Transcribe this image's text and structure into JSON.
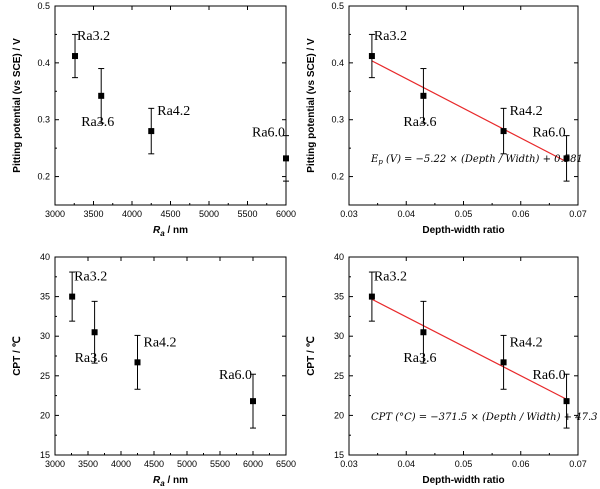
{
  "chart_data": [
    {
      "type": "scatter",
      "panel": "top-left",
      "xlabel": "Ra / nm",
      "xlabel_main": "R",
      "xlabel_sub": "a",
      "xlabel_rest": " / nm",
      "ylabel": "Pitting potential (vs SCE) / V",
      "xlim": [
        3000,
        6000
      ],
      "ylim": [
        0.15,
        0.5
      ],
      "xticks": [
        3000,
        3500,
        4000,
        4500,
        5000,
        5500,
        6000
      ],
      "yticks": [
        0.2,
        0.3,
        0.4,
        0.5
      ],
      "ytick_labels": [
        "0.2",
        "0.3",
        "0.4",
        "0.5"
      ],
      "points": [
        {
          "label": "Ra3.2",
          "x": 3260,
          "y": 0.412,
          "err": 0.038
        },
        {
          "label": "Ra3.6",
          "x": 3600,
          "y": 0.342,
          "err": 0.048
        },
        {
          "label": "Ra4.2",
          "x": 4250,
          "y": 0.28,
          "err": 0.04
        },
        {
          "label": "Ra6.0",
          "x": 6000,
          "y": 0.232,
          "err": 0.04
        }
      ],
      "fit": null,
      "equation": null
    },
    {
      "type": "scatter",
      "panel": "top-right",
      "xlabel": "Depth-width ratio",
      "ylabel": "Pitting potential (vs SCE) / V",
      "xlim": [
        0.03,
        0.07
      ],
      "ylim": [
        0.15,
        0.5
      ],
      "xticks": [
        0.03,
        0.04,
        0.05,
        0.06,
        0.07
      ],
      "xtick_labels": [
        "0.03",
        "0.04",
        "0.05",
        "0.06",
        "0.07"
      ],
      "yticks": [
        0.2,
        0.3,
        0.4,
        0.5
      ],
      "ytick_labels": [
        "0.2",
        "0.3",
        "0.4",
        "0.5"
      ],
      "points": [
        {
          "label": "Ra3.2",
          "x": 0.034,
          "y": 0.412,
          "err": 0.038
        },
        {
          "label": "Ra3.6",
          "x": 0.043,
          "y": 0.342,
          "err": 0.048
        },
        {
          "label": "Ra4.2",
          "x": 0.057,
          "y": 0.28,
          "err": 0.04
        },
        {
          "label": "Ra6.0",
          "x": 0.068,
          "y": 0.232,
          "err": 0.04
        }
      ],
      "fit": {
        "slope": -5.22,
        "intercept": 0.581,
        "x_from": 0.034,
        "x_to": 0.068,
        "color": "#e8292b"
      },
      "equation": {
        "lhs": "E",
        "lhs_sub": "p",
        "lhs_unit": " (V)",
        "rhs": "= −5.22 × (Depth / Width) + 0.581"
      }
    },
    {
      "type": "scatter",
      "panel": "bottom-left",
      "xlabel": "Ra / nm",
      "xlabel_main": "R",
      "xlabel_sub": "a",
      "xlabel_rest": " / nm",
      "ylabel": "CPT / ℃",
      "xlim": [
        3000,
        6500
      ],
      "ylim": [
        15,
        40
      ],
      "xticks": [
        3000,
        3500,
        4000,
        4500,
        5000,
        5500,
        6000,
        6500
      ],
      "yticks": [
        15,
        20,
        25,
        30,
        35,
        40
      ],
      "ytick_labels": [
        "15",
        "20",
        "25",
        "30",
        "35",
        "40"
      ],
      "points": [
        {
          "label": "Ra3.2",
          "x": 3260,
          "y": 35.0,
          "err": 3.1
        },
        {
          "label": "Ra3.6",
          "x": 3600,
          "y": 30.5,
          "err": 3.9
        },
        {
          "label": "Ra4.2",
          "x": 4250,
          "y": 26.7,
          "err": 3.4
        },
        {
          "label": "Ra6.0",
          "x": 6000,
          "y": 21.8,
          "err": 3.4
        }
      ],
      "fit": null,
      "equation": null
    },
    {
      "type": "scatter",
      "panel": "bottom-right",
      "xlabel": "Depth-width ratio",
      "ylabel": "CPT / ℃",
      "xlim": [
        0.03,
        0.07
      ],
      "ylim": [
        15,
        40
      ],
      "xticks": [
        0.03,
        0.04,
        0.05,
        0.06,
        0.07
      ],
      "xtick_labels": [
        "0.03",
        "0.04",
        "0.05",
        "0.06",
        "0.07"
      ],
      "yticks": [
        15,
        20,
        25,
        30,
        35,
        40
      ],
      "ytick_labels": [
        "15",
        "20",
        "25",
        "30",
        "35",
        "40"
      ],
      "points": [
        {
          "label": "Ra3.2",
          "x": 0.034,
          "y": 35.0,
          "err": 3.1
        },
        {
          "label": "Ra3.6",
          "x": 0.043,
          "y": 30.5,
          "err": 3.9
        },
        {
          "label": "Ra4.2",
          "x": 0.057,
          "y": 26.7,
          "err": 3.4
        },
        {
          "label": "Ra6.0",
          "x": 0.068,
          "y": 21.8,
          "err": 3.4
        }
      ],
      "fit": {
        "slope": -371.5,
        "intercept": 47.3,
        "x_from": 0.034,
        "x_to": 0.068,
        "color": "#e8292b"
      },
      "equation": {
        "lhs": "CPT",
        "lhs_sub": "",
        "lhs_unit": " (°C)",
        "rhs": "= −371.5 × (Depth / Width) + 47.3"
      }
    }
  ]
}
